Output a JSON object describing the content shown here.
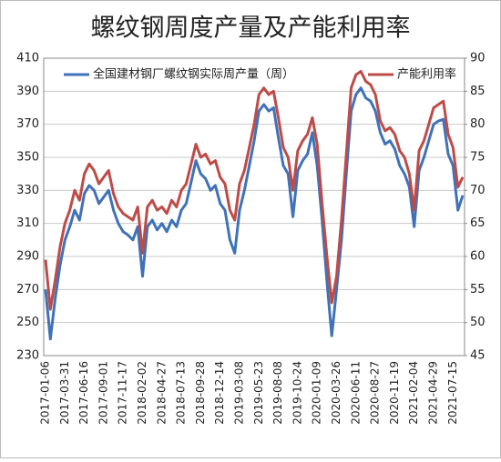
{
  "chart_data": {
    "type": "line",
    "title": "螺纹钢周度产量及产能利用率",
    "categories": [
      "2017-01-06",
      null,
      null,
      null,
      "2017-03-31",
      null,
      null,
      null,
      "2017-06-16",
      null,
      null,
      null,
      "2017-09-01",
      null,
      null,
      null,
      "2017-11-17",
      null,
      null,
      null,
      "2018-02-02",
      null,
      null,
      null,
      "2018-04-27",
      null,
      null,
      null,
      "2018-07-13",
      null,
      null,
      null,
      "2018-09-28",
      null,
      null,
      null,
      "2018-12-14",
      null,
      null,
      null,
      "2019-03-08",
      null,
      null,
      null,
      "2019-05-23",
      null,
      null,
      null,
      "2019-08-08",
      null,
      null,
      null,
      "2019-10-24",
      null,
      null,
      null,
      "2020-01-09",
      null,
      null,
      null,
      "2020-03-26",
      null,
      null,
      null,
      "2020-06-11",
      null,
      null,
      null,
      "2020-08-27",
      null,
      null,
      null,
      "2020-11-19",
      null,
      null,
      null,
      "2021-02-04",
      null,
      null,
      null,
      "2021-04-29",
      null,
      null,
      null,
      "2021-07-15",
      null,
      null
    ],
    "series": [
      {
        "name": "全国建材钢厂螺纹钢实际周产量（周）",
        "color": "#3f72b8",
        "axis": "y",
        "values": [
          270,
          240,
          265,
          285,
          300,
          308,
          318,
          312,
          328,
          333,
          330,
          322,
          326,
          330,
          318,
          310,
          305,
          303,
          300,
          308,
          278,
          308,
          312,
          306,
          310,
          305,
          312,
          308,
          318,
          322,
          335,
          348,
          340,
          337,
          330,
          333,
          322,
          318,
          300,
          292,
          318,
          330,
          345,
          360,
          378,
          382,
          378,
          380,
          362,
          345,
          340,
          314,
          342,
          348,
          352,
          365,
          345,
          312,
          275,
          242,
          270,
          300,
          340,
          378,
          388,
          392,
          386,
          384,
          378,
          365,
          358,
          360,
          355,
          345,
          340,
          332,
          308,
          342,
          350,
          360,
          370,
          372,
          373,
          352,
          345,
          318,
          327
        ]
      },
      {
        "name": "产能利用率",
        "color": "#be4b48",
        "axis": "y2",
        "values": [
          59.5,
          52,
          56.5,
          61.5,
          65,
          67,
          70,
          68.5,
          72.5,
          74,
          73,
          71,
          72,
          73,
          69.5,
          67.5,
          66.5,
          66,
          65.5,
          67.5,
          60.5,
          67.5,
          68.5,
          67,
          67.5,
          66.5,
          68.5,
          67.5,
          70,
          71,
          74,
          77,
          75,
          75.5,
          74,
          74.5,
          72,
          71,
          67,
          65.5,
          71,
          73,
          76.5,
          80,
          84.5,
          85.5,
          84.5,
          85,
          81,
          76.5,
          75,
          70,
          76,
          77.5,
          78.5,
          81,
          77,
          68,
          60,
          53,
          57,
          65.5,
          75.5,
          85.5,
          87.5,
          88,
          86.5,
          86,
          84.5,
          80.5,
          79,
          79.5,
          78.5,
          76,
          75,
          72.5,
          67,
          76,
          77.5,
          80,
          82.5,
          83,
          83.5,
          78.5,
          76.5,
          70.5,
          72
        ]
      }
    ],
    "ylim": [
      230,
      410
    ],
    "yticks": [
      230,
      250,
      270,
      290,
      310,
      330,
      350,
      370,
      390,
      410
    ],
    "y2lim": [
      45,
      90
    ],
    "y2ticks": [
      45,
      50,
      55,
      60,
      65,
      70,
      75,
      80,
      85,
      90
    ],
    "grid": true,
    "legend": "top"
  }
}
